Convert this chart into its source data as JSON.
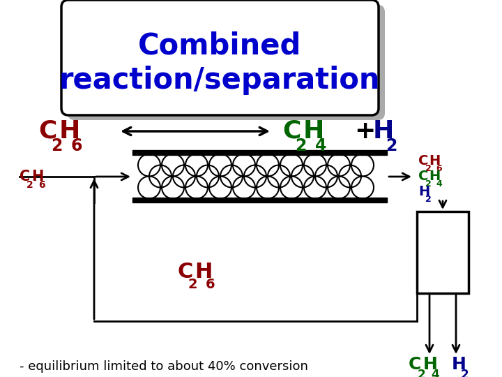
{
  "title_line1": "Combined",
  "title_line2": "reaction/separation",
  "title_color": "#0000cc",
  "title_fontsize": 30,
  "white": "#ffffff",
  "black": "#000000",
  "dark_red": "#8b0000",
  "dark_green": "#006400",
  "dark_blue": "#00008b",
  "shadow_color": "#aaaaaa",
  "bottom_note": "- equilibrium limited to about 40% conversion",
  "note_fontsize": 13
}
